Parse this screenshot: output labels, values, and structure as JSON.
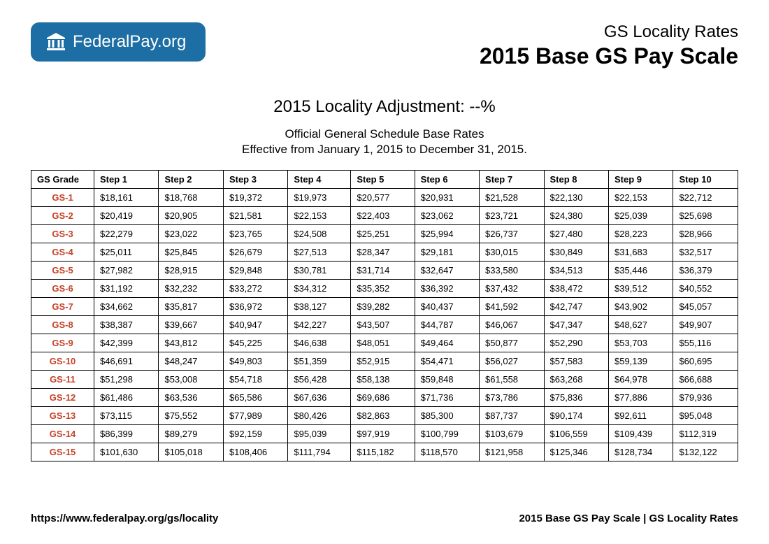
{
  "logo": {
    "text_bold": "Federal",
    "text_thin": "Pay.org"
  },
  "header": {
    "subtitle": "GS Locality Rates",
    "title": "2015 Base GS Pay Scale"
  },
  "adjustment": "2015 Locality Adjustment: --%",
  "description_line1": "Official General Schedule Base Rates",
  "description_line2": "Effective from January 1, 2015 to December 31, 2015.",
  "table": {
    "columns": [
      "GS Grade",
      "Step 1",
      "Step 2",
      "Step 3",
      "Step 4",
      "Step 5",
      "Step 6",
      "Step 7",
      "Step 8",
      "Step 9",
      "Step 10"
    ],
    "rows": [
      [
        "GS-1",
        "$18,161",
        "$18,768",
        "$19,372",
        "$19,973",
        "$20,577",
        "$20,931",
        "$21,528",
        "$22,130",
        "$22,153",
        "$22,712"
      ],
      [
        "GS-2",
        "$20,419",
        "$20,905",
        "$21,581",
        "$22,153",
        "$22,403",
        "$23,062",
        "$23,721",
        "$24,380",
        "$25,039",
        "$25,698"
      ],
      [
        "GS-3",
        "$22,279",
        "$23,022",
        "$23,765",
        "$24,508",
        "$25,251",
        "$25,994",
        "$26,737",
        "$27,480",
        "$28,223",
        "$28,966"
      ],
      [
        "GS-4",
        "$25,011",
        "$25,845",
        "$26,679",
        "$27,513",
        "$28,347",
        "$29,181",
        "$30,015",
        "$30,849",
        "$31,683",
        "$32,517"
      ],
      [
        "GS-5",
        "$27,982",
        "$28,915",
        "$29,848",
        "$30,781",
        "$31,714",
        "$32,647",
        "$33,580",
        "$34,513",
        "$35,446",
        "$36,379"
      ],
      [
        "GS-6",
        "$31,192",
        "$32,232",
        "$33,272",
        "$34,312",
        "$35,352",
        "$36,392",
        "$37,432",
        "$38,472",
        "$39,512",
        "$40,552"
      ],
      [
        "GS-7",
        "$34,662",
        "$35,817",
        "$36,972",
        "$38,127",
        "$39,282",
        "$40,437",
        "$41,592",
        "$42,747",
        "$43,902",
        "$45,057"
      ],
      [
        "GS-8",
        "$38,387",
        "$39,667",
        "$40,947",
        "$42,227",
        "$43,507",
        "$44,787",
        "$46,067",
        "$47,347",
        "$48,627",
        "$49,907"
      ],
      [
        "GS-9",
        "$42,399",
        "$43,812",
        "$45,225",
        "$46,638",
        "$48,051",
        "$49,464",
        "$50,877",
        "$52,290",
        "$53,703",
        "$55,116"
      ],
      [
        "GS-10",
        "$46,691",
        "$48,247",
        "$49,803",
        "$51,359",
        "$52,915",
        "$54,471",
        "$56,027",
        "$57,583",
        "$59,139",
        "$60,695"
      ],
      [
        "GS-11",
        "$51,298",
        "$53,008",
        "$54,718",
        "$56,428",
        "$58,138",
        "$59,848",
        "$61,558",
        "$63,268",
        "$64,978",
        "$66,688"
      ],
      [
        "GS-12",
        "$61,486",
        "$63,536",
        "$65,586",
        "$67,636",
        "$69,686",
        "$71,736",
        "$73,786",
        "$75,836",
        "$77,886",
        "$79,936"
      ],
      [
        "GS-13",
        "$73,115",
        "$75,552",
        "$77,989",
        "$80,426",
        "$82,863",
        "$85,300",
        "$87,737",
        "$90,174",
        "$92,611",
        "$95,048"
      ],
      [
        "GS-14",
        "$86,399",
        "$89,279",
        "$92,159",
        "$95,039",
        "$97,919",
        "$100,799",
        "$103,679",
        "$106,559",
        "$109,439",
        "$112,319"
      ],
      [
        "GS-15",
        "$101,630",
        "$105,018",
        "$108,406",
        "$111,794",
        "$115,182",
        "$118,570",
        "$121,958",
        "$125,346",
        "$128,734",
        "$132,122"
      ]
    ],
    "grade_color": "#c74127",
    "border_color": "#000000"
  },
  "footer": {
    "left": "https://www.federalpay.org/gs/locality",
    "right": "2015 Base GS Pay Scale | GS Locality Rates"
  },
  "colors": {
    "badge_bg": "#1c6ea4",
    "text": "#000000",
    "background": "#ffffff"
  }
}
